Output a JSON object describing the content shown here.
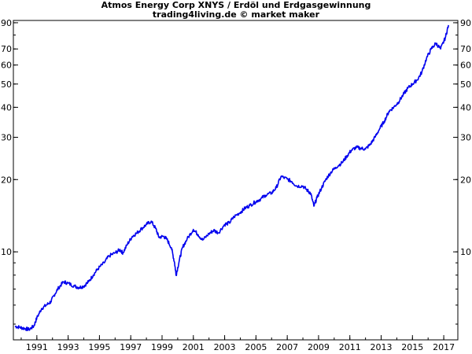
{
  "chart_data": {
    "type": "line",
    "title": "Atmos Energy Corp XNYS / Erdöl und Erdgasgewinnung",
    "subtitle": "trading4living.de © market maker",
    "xlabel": "",
    "ylabel": "",
    "y_scale": "log",
    "grid": false,
    "xlim": [
      1989.5,
      2017.9
    ],
    "ylim": [
      4.3,
      92
    ],
    "y_tick_labels": [
      "90",
      "70",
      "60",
      "50",
      "40",
      "30",
      "20",
      "10"
    ],
    "y_tick_values": [
      90,
      70,
      60,
      50,
      40,
      30,
      20,
      10
    ],
    "x_tick_labels": [
      "1991",
      "1993",
      "1995",
      "1997",
      "1999",
      "2001",
      "2003",
      "2005",
      "2007",
      "2009",
      "2011",
      "2013",
      "2015",
      "2017"
    ],
    "x_tick_values": [
      1991,
      1993,
      1995,
      1997,
      1999,
      2001,
      2003,
      2005,
      2007,
      2009,
      2011,
      2013,
      2015,
      2017
    ],
    "colors": {
      "line": "#0000ee",
      "axis": "#000000",
      "background": "#ffffff"
    },
    "series": [
      {
        "name": "",
        "x": [
          1989.6,
          1989.9,
          1990.2,
          1990.5,
          1990.8,
          1991.0,
          1991.3,
          1991.6,
          1991.9,
          1992.1,
          1992.4,
          1992.7,
          1993.0,
          1993.4,
          1993.7,
          1994.0,
          1994.3,
          1994.6,
          1994.9,
          1995.3,
          1995.6,
          1996.0,
          1996.3,
          1996.5,
          1996.8,
          1997.1,
          1997.4,
          1997.7,
          1998.0,
          1998.3,
          1998.6,
          1998.8,
          1999.1,
          1999.3,
          1999.6,
          1999.8,
          1999.9,
          2000.1,
          2000.3,
          2000.6,
          2001.0,
          2001.3,
          2001.6,
          2002.0,
          2002.3,
          2002.6,
          2003.0,
          2003.3,
          2003.6,
          2004.0,
          2004.3,
          2004.6,
          2005.0,
          2005.3,
          2005.6,
          2006.0,
          2006.3,
          2006.6,
          2007.0,
          2007.3,
          2007.6,
          2008.0,
          2008.3,
          2008.5,
          2008.7,
          2008.9,
          2009.2,
          2009.5,
          2009.8,
          2010.1,
          2010.5,
          2010.8,
          2011.1,
          2011.4,
          2011.7,
          2012.0,
          2012.3,
          2012.6,
          2012.9,
          2013.2,
          2013.5,
          2013.8,
          2014.1,
          2014.4,
          2014.7,
          2015.0,
          2015.3,
          2015.6,
          2015.9,
          2016.2,
          2016.5,
          2016.8,
          2017.1,
          2017.3
        ],
        "values": [
          4.9,
          4.85,
          4.8,
          4.75,
          4.9,
          5.3,
          5.8,
          6.0,
          6.2,
          6.6,
          7.1,
          7.5,
          7.4,
          7.2,
          7.1,
          7.2,
          7.5,
          8.0,
          8.5,
          9.0,
          9.6,
          9.9,
          10.2,
          9.9,
          10.8,
          11.6,
          12.0,
          12.5,
          13.0,
          13.4,
          12.5,
          11.5,
          11.6,
          11.3,
          10.4,
          9.0,
          8.0,
          9.2,
          10.4,
          11.3,
          12.4,
          11.8,
          11.2,
          11.9,
          12.3,
          12.0,
          13.0,
          13.2,
          14.0,
          14.6,
          15.2,
          15.6,
          16.2,
          16.6,
          17.2,
          17.6,
          18.5,
          20.6,
          20.1,
          19.6,
          18.8,
          18.8,
          18.0,
          17.5,
          15.5,
          16.8,
          18.5,
          20.2,
          21.5,
          22.5,
          23.5,
          25.0,
          26.5,
          27.2,
          27.0,
          26.8,
          28.0,
          30.0,
          32.5,
          35.0,
          38.5,
          40.0,
          42.0,
          45.0,
          48.0,
          50.0,
          52.0,
          56.0,
          64.0,
          70.0,
          74.0,
          70.0,
          78.0,
          88.0
        ]
      }
    ]
  }
}
